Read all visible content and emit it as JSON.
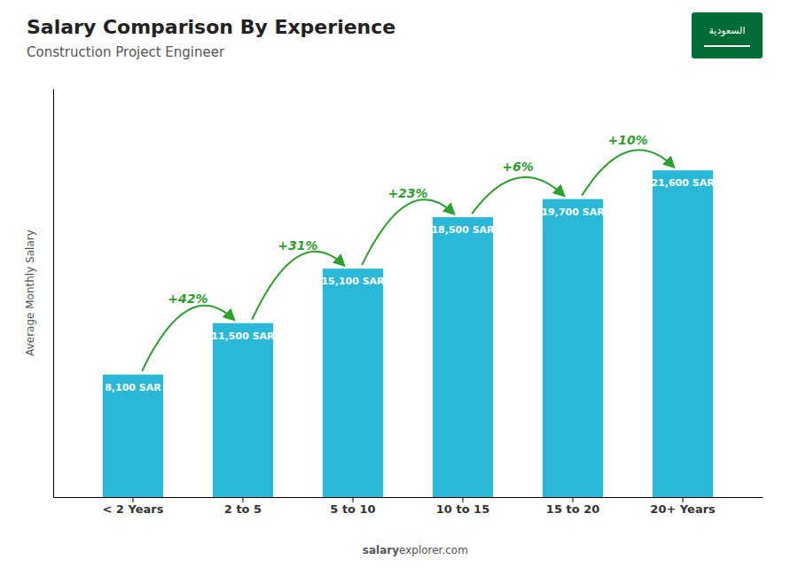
{
  "chart_data": {
    "type": "bar",
    "title": "Salary Comparison By Experience",
    "subtitle": "Construction Project Engineer",
    "ylabel": "Average Monthly Salary",
    "categories": [
      "< 2 Years",
      "2 to 5",
      "5 to 10",
      "10 to 15",
      "15 to 20",
      "20+ Years"
    ],
    "values": [
      8100,
      11500,
      15100,
      18500,
      19700,
      21600
    ],
    "value_labels": [
      "8,100 SAR",
      "11,500 SAR",
      "15,100 SAR",
      "18,500 SAR",
      "19,700 SAR",
      "21,600 SAR"
    ],
    "data_labels": true,
    "annotations": [
      "+42%",
      "+31%",
      "+23%",
      "+6%",
      "+10%"
    ],
    "color": "#29b8d8",
    "ylim": [
      0,
      27000
    ],
    "tick_labels": "x",
    "grid": false,
    "footer": [
      "salary",
      "explorer.com"
    ],
    "badge": "السعودية"
  }
}
